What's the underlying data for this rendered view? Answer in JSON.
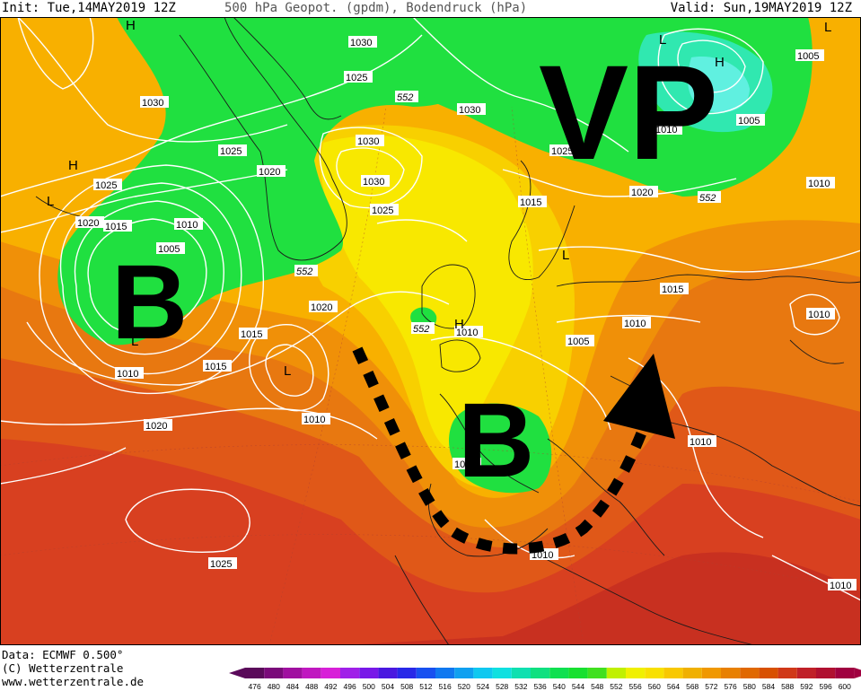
{
  "header": {
    "init": "Init: Tue,14MAY2019 12Z",
    "title": "500 hPa Geopot. (gpdm), Bodendruck (hPa)",
    "valid": "Valid: Sun,19MAY2019 12Z"
  },
  "footer": {
    "data_line": "Data: ECMWF  0.500°",
    "copyright": "(C) Wetterzentrale",
    "url": "www.wetterzentrale.de"
  },
  "annotations": {
    "vp": "VP",
    "b_west": "B",
    "b_south": "B"
  },
  "pressure_labels": [
    {
      "id": "p1",
      "text": "1030"
    },
    {
      "id": "p2",
      "text": "1025"
    },
    {
      "id": "p3",
      "text": "1030"
    },
    {
      "id": "p4",
      "text": "1025"
    },
    {
      "id": "p5",
      "text": "1020"
    },
    {
      "id": "p6",
      "text": "1030"
    },
    {
      "id": "p7",
      "text": "1030"
    },
    {
      "id": "p8",
      "text": "1030"
    },
    {
      "id": "p9",
      "text": "1025"
    },
    {
      "id": "p10",
      "text": "1020"
    },
    {
      "id": "p11",
      "text": "1015"
    },
    {
      "id": "p12",
      "text": "1010"
    },
    {
      "id": "p13",
      "text": "1005"
    },
    {
      "id": "p14",
      "text": "1020"
    },
    {
      "id": "p15",
      "text": "1015"
    },
    {
      "id": "p16",
      "text": "1010"
    },
    {
      "id": "p17",
      "text": "1015"
    },
    {
      "id": "p18",
      "text": "1010"
    },
    {
      "id": "p19",
      "text": "1020"
    },
    {
      "id": "p20",
      "text": "1025"
    },
    {
      "id": "p21",
      "text": "1025"
    },
    {
      "id": "p22",
      "text": "1015"
    },
    {
      "id": "p23",
      "text": "1020"
    },
    {
      "id": "p24",
      "text": "1010"
    },
    {
      "id": "p25",
      "text": "1005"
    },
    {
      "id": "p26",
      "text": "1010"
    },
    {
      "id": "p27",
      "text": "1005"
    },
    {
      "id": "p28",
      "text": "1010"
    },
    {
      "id": "p29",
      "text": "1015"
    },
    {
      "id": "p30",
      "text": "1010"
    },
    {
      "id": "p31",
      "text": "1010"
    },
    {
      "id": "p32",
      "text": "1010"
    },
    {
      "id": "p33",
      "text": "1010"
    },
    {
      "id": "p34",
      "text": "1010"
    },
    {
      "id": "p35",
      "text": "1025"
    },
    {
      "id": "p36",
      "text": "1005"
    },
    {
      "id": "p37",
      "text": "1010"
    }
  ],
  "geopot_labels": [
    {
      "id": "g1",
      "text": "552"
    },
    {
      "id": "g2",
      "text": "552"
    },
    {
      "id": "g3",
      "text": "552"
    },
    {
      "id": "g4",
      "text": "552"
    }
  ],
  "center_marks": [
    {
      "id": "c1",
      "text": "H"
    },
    {
      "id": "c2",
      "text": "H"
    },
    {
      "id": "c3",
      "text": "L"
    },
    {
      "id": "c4",
      "text": "L"
    },
    {
      "id": "c5",
      "text": "L"
    },
    {
      "id": "c6",
      "text": "H"
    },
    {
      "id": "c7",
      "text": "L"
    },
    {
      "id": "c8",
      "text": "L"
    },
    {
      "id": "c9",
      "text": "H"
    },
    {
      "id": "c10",
      "text": "L"
    }
  ],
  "legend": {
    "values": [
      "476",
      "480",
      "484",
      "488",
      "492",
      "496",
      "500",
      "504",
      "508",
      "512",
      "516",
      "520",
      "524",
      "528",
      "532",
      "536",
      "540",
      "544",
      "548",
      "552",
      "556",
      "560",
      "564",
      "568",
      "572",
      "576",
      "580",
      "584",
      "588",
      "592",
      "596",
      "600"
    ],
    "colors": [
      "#5a0a5a",
      "#7a0a7a",
      "#a010a0",
      "#c018c0",
      "#d820d8",
      "#a020e8",
      "#7818e8",
      "#4a18e0",
      "#2828e8",
      "#1850f0",
      "#1078f0",
      "#10a0f0",
      "#10c8f0",
      "#10e0e0",
      "#10e0b0",
      "#10e080",
      "#10e050",
      "#18e030",
      "#40e020",
      "#c0f000",
      "#f0f000",
      "#f8e000",
      "#f8c800",
      "#f0b000",
      "#f09800",
      "#e88000",
      "#e06800",
      "#d85000",
      "#d03818",
      "#c02028",
      "#b01030",
      "#a00040"
    ]
  }
}
